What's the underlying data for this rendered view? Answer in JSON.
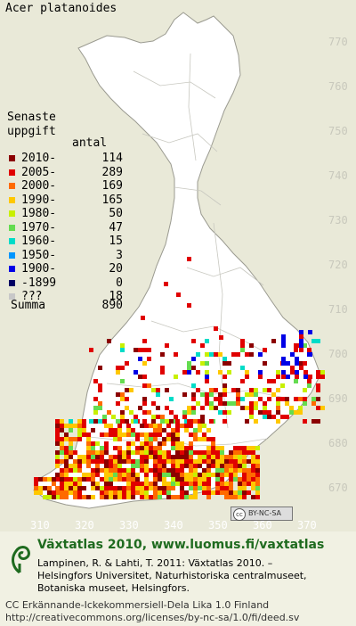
{
  "map": {
    "species": "Acer platanoides",
    "grid_x_labels": [
      "310",
      "320",
      "330",
      "340",
      "350",
      "360",
      "370"
    ],
    "grid_y_labels": [
      "770",
      "760",
      "750",
      "740",
      "730",
      "720",
      "710",
      "700",
      "690",
      "680",
      "670"
    ],
    "cc_badge": "BY-NC-SA",
    "cc_icon": "cc"
  },
  "legend": {
    "title_line1": "Senaste",
    "title_line2": "uppgift",
    "count_header": "antal",
    "items": [
      {
        "label": "2010-",
        "count": "114",
        "color": "#8b0000"
      },
      {
        "label": "2005-",
        "count": "289",
        "color": "#e00000"
      },
      {
        "label": "2000-",
        "count": "169",
        "color": "#ff6a00"
      },
      {
        "label": "1990-",
        "count": "165",
        "color": "#ffc800"
      },
      {
        "label": "1980-",
        "count": "50",
        "color": "#c8f000"
      },
      {
        "label": "1970-",
        "count": "47",
        "color": "#64dc50"
      },
      {
        "label": "1960-",
        "count": "15",
        "color": "#00dcc8"
      },
      {
        "label": "1950-",
        "count": "3",
        "color": "#0096ff"
      },
      {
        "label": "1900-",
        "count": "20",
        "color": "#0000e6"
      },
      {
        "label": "-1899",
        "count": "0",
        "color": "#000064"
      },
      {
        "label": "???",
        "count": "18",
        "color": "#c8c8c8"
      }
    ],
    "total_label": "Summa",
    "total_count": "890"
  },
  "footer": {
    "site": "Växtatlas 2010, www.luomus.fi/vaxtatlas",
    "cite_line1": "Lampinen, R. & Lahti, T. 2011: Växtatlas 2010. –",
    "cite_line2": "Helsingfors Universitet, Naturhistoriska centralmuseet,",
    "cite_line3": "Botaniska museet, Helsingfors.",
    "license_line1": "CC Erkännande-Ickekommersiell-Dela Lika 1.0 Finland",
    "license_line2": "http://creativecommons.org/licenses/by-nc-sa/1.0/fi/deed.sv",
    "logo_icon": "spiral-leaf-icon"
  }
}
